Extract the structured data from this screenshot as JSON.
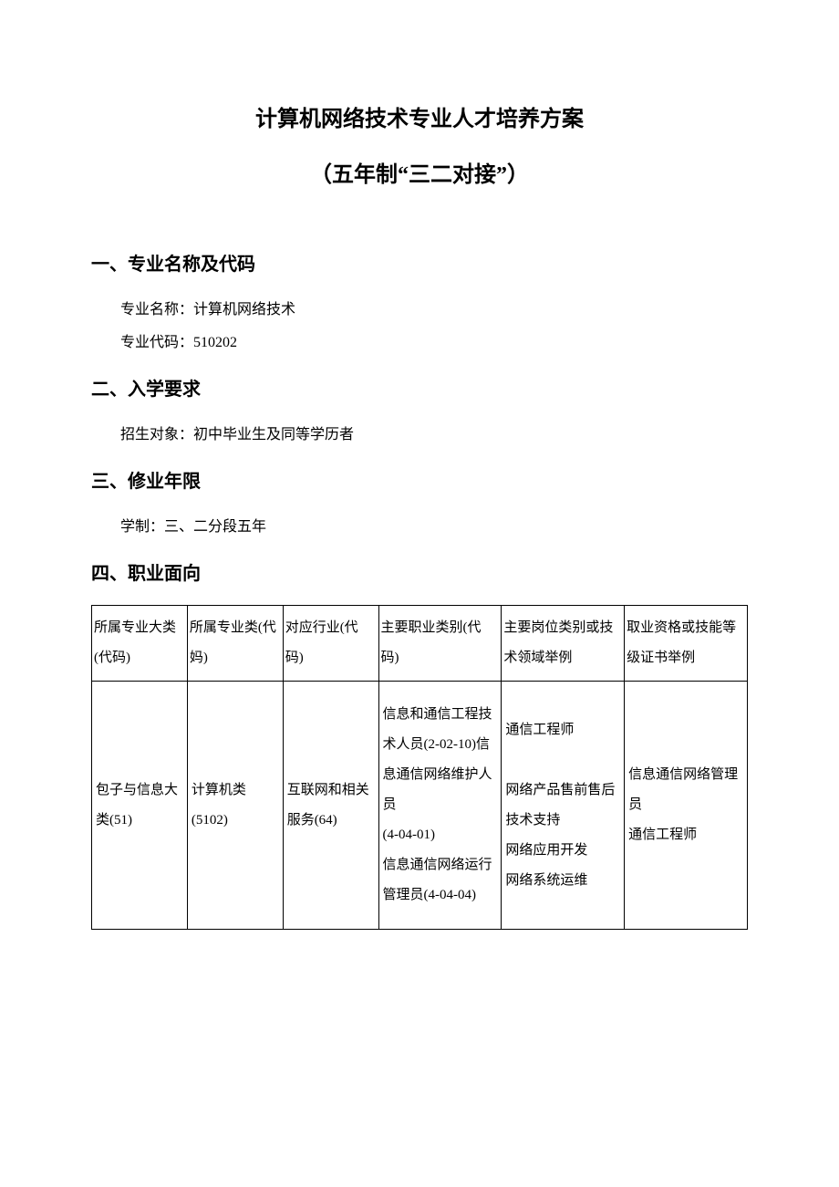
{
  "title": {
    "main": "计算机网络技术专业人才培养方案",
    "sub": "（五年制“三二对接”）"
  },
  "sections": {
    "s1": {
      "heading": "一、专业名称及代码",
      "line1": "专业名称：计算机网络技术",
      "line2": "专业代码：510202"
    },
    "s2": {
      "heading": "二、入学要求",
      "line1": "招生对象：初中毕业生及同等学历者"
    },
    "s3": {
      "heading": "三、修业年限",
      "line1": "学制：三、二分段五年"
    },
    "s4": {
      "heading": "四、职业面向"
    }
  },
  "table": {
    "headers": {
      "h1": "所属专业大类(代码)",
      "h2": "所属专业类(代妈)",
      "h3": "对应行业(代码)",
      "h4": "主要职业类别(代码)",
      "h5": "主要岗位类别或技术领域举例",
      "h6": "取业资格或技能等级证书举例"
    },
    "row1": {
      "c1": "包子与信息大类(51)",
      "c2": "计算机类\n(5102)",
      "c3": "互联网和相关服务(64)",
      "c4": "信息和通信工程技术人员(2-02-10)信息通信网络维护人员\n(4-04-01)\n信息通信网络运行管理员(4-04-04)",
      "c5": "通信工程师\n\n网络产品售前售后技术支持\n网络应用开发\n网络系统运维",
      "c6": "信息通信网络管理员\n通信工程师"
    },
    "colors": {
      "border": "#000000",
      "text": "#000000",
      "background": "#ffffff"
    },
    "fontsize": 15
  }
}
